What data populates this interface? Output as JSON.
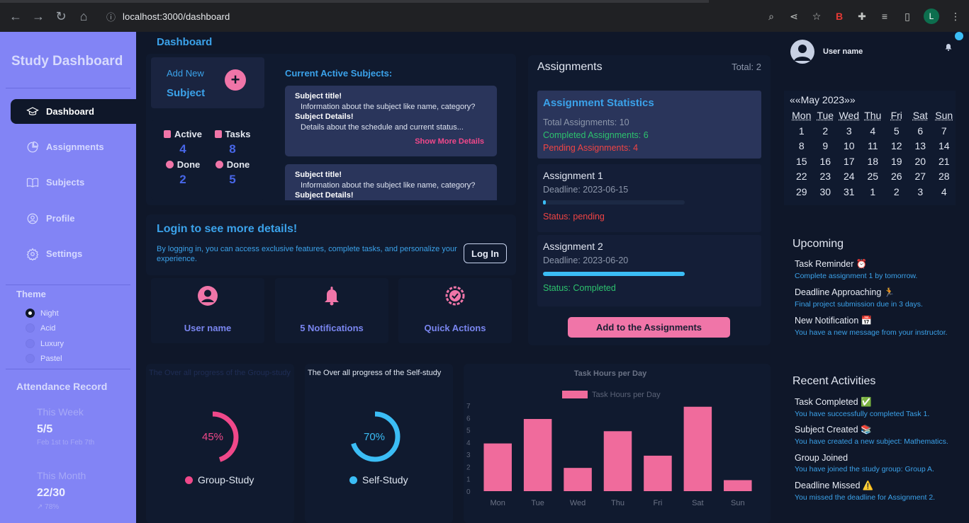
{
  "browser": {
    "url": "localhost:3000/dashboard",
    "profile_initial": "L"
  },
  "sidebar": {
    "brand": "Study Dashboard",
    "items": [
      {
        "label": "Dashboard",
        "icon": "graduation-cap-icon",
        "active": true
      },
      {
        "label": "Assignments",
        "icon": "pie-chart-icon",
        "active": false
      },
      {
        "label": "Subjects",
        "icon": "book-icon",
        "active": false
      },
      {
        "label": "Profile",
        "icon": "user-circle-icon",
        "active": false
      },
      {
        "label": "Settings",
        "icon": "gear-icon",
        "active": false
      }
    ],
    "theme_title": "Theme",
    "themes": [
      {
        "label": "Night",
        "selected": true
      },
      {
        "label": "Acid",
        "selected": false
      },
      {
        "label": "Luxury",
        "selected": false
      },
      {
        "label": "Pastel",
        "selected": false
      }
    ],
    "attendance": {
      "title": "Attendance Record",
      "week_label": "This Week",
      "week_value": "5/5",
      "week_sub": "Feb 1st to Feb 7th",
      "month_label": "This Month",
      "month_value": "22/30",
      "month_sub": "↗ 78%"
    }
  },
  "main": {
    "title": "Dashboard",
    "add_new": {
      "line1": "Add New",
      "line2": "Subject",
      "button": "+"
    },
    "stats": {
      "active_label": "Active",
      "active_value": "4",
      "tasks_label": "Tasks",
      "tasks_value": "8",
      "done1_label": "Done",
      "done1_value": "2",
      "done2_label": "Done",
      "done2_value": "5"
    },
    "subjects_title": "Current Active Subjects:",
    "subject_cards": [
      {
        "title_label": "Subject title!",
        "title_text": "Information about the subject like name, category?",
        "details_label": "Subject Details!",
        "details_text": "Details about the schedule and current status...",
        "more": "Show More Details"
      },
      {
        "title_label": "Subject title!",
        "title_text": "Information about the subject like name, category?",
        "details_label": "Subject Details!"
      }
    ],
    "login": {
      "title": "Login to see more details!",
      "desc": "By logging in, you can access exclusive features, complete tasks, and personalize your experience.",
      "button": "Log In"
    },
    "quick_cards": [
      {
        "label": "User name",
        "icon": "user-circle-icon"
      },
      {
        "label": "5 Notifications",
        "icon": "bell-icon"
      },
      {
        "label": "Quick Actions",
        "icon": "gear-badge-icon"
      }
    ]
  },
  "assignments": {
    "title": "Assignments",
    "total": "Total: 2",
    "stats": {
      "title": "Assignment Statistics",
      "total": "Total Assignments: 10",
      "completed": "Completed Assignments: 6",
      "pending": "Pending Assignments: 4"
    },
    "items": [
      {
        "name": "Assignment 1",
        "deadline": "Deadline: 2023-06-15",
        "progress": 0.02,
        "status": "Status: pending"
      },
      {
        "name": "Assignment 2",
        "deadline": "Deadline: 2023-06-20",
        "progress": 1.0,
        "status": "Status: Completed"
      }
    ],
    "add_button": "Add to the Assignments"
  },
  "progress": {
    "group": {
      "title": "The Over all progress of the Group-study",
      "percent": 45,
      "label": "45%",
      "legend": "Group-Study",
      "color": "#f0488a"
    },
    "self": {
      "title": "The Over all progress of the Self-study",
      "percent": 70,
      "label": "70%",
      "legend": "Self-Study",
      "color": "#3bbdf5"
    }
  },
  "chart_data": {
    "type": "bar",
    "title": "Task Hours per Day",
    "categories": [
      "Mon",
      "Tue",
      "Wed",
      "Thu",
      "Fri",
      "Sat",
      "Sun"
    ],
    "series": [
      {
        "name": "Task Hours per Day",
        "values": [
          3.9,
          5.9,
          1.9,
          4.9,
          2.9,
          6.9,
          0.9
        ]
      }
    ],
    "yticks": [
      "0",
      "1",
      "2",
      "3",
      "4",
      "5",
      "6",
      "7"
    ],
    "ylim": [
      0,
      7
    ],
    "bar_color": "#f06b9c",
    "legend_position": "top"
  },
  "right": {
    "user_name": "User name",
    "calendar": {
      "header": "««May 2023»»",
      "days": [
        "Mon",
        "Tue",
        "Wed",
        "Thu",
        "Fri",
        "Sat",
        "Sun"
      ],
      "dates": [
        "1",
        "2",
        "3",
        "4",
        "5",
        "6",
        "7",
        "8",
        "9",
        "10",
        "11",
        "12",
        "13",
        "14",
        "15",
        "16",
        "17",
        "18",
        "19",
        "20",
        "21",
        "22",
        "23",
        "24",
        "25",
        "26",
        "27",
        "28",
        "29",
        "30",
        "31",
        "1",
        "2",
        "3",
        "4"
      ]
    },
    "upcoming_title": "Upcoming",
    "upcoming": [
      {
        "title": "Task Reminder ⏰",
        "desc": "Complete assignment 1 by tomorrow."
      },
      {
        "title": "Deadline Approaching 🏃",
        "desc": "Final project submission due in 3 days."
      },
      {
        "title": "New Notification 📅",
        "desc": "You have a new message from your instructor."
      }
    ],
    "recent_title": "Recent Activities",
    "recent": [
      {
        "title": "Task Completed ✅",
        "desc": "You have successfully completed Task 1."
      },
      {
        "title": "Subject Created 📚",
        "desc": "You have created a new subject: Mathematics."
      },
      {
        "title": "Group Joined",
        "desc": "You have joined the study group: Group A."
      },
      {
        "title": "Deadline Missed ⚠️",
        "desc": "You missed the deadline for Assignment 2."
      }
    ]
  }
}
